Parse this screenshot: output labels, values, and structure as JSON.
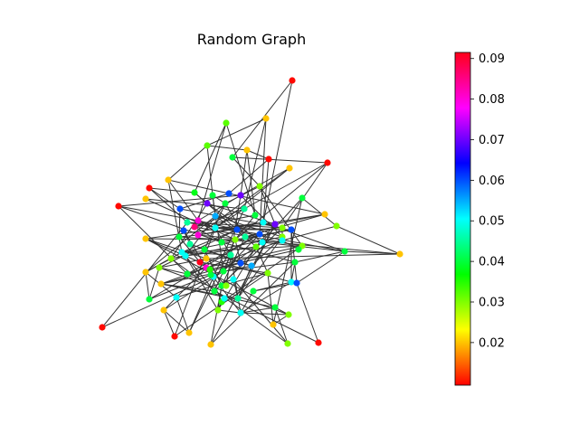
{
  "chart_data": {
    "type": "network",
    "title": "Random Graph",
    "colorbar": {
      "colormap": "hsv",
      "vmin": 0.0095,
      "vmax": 0.0915,
      "ticks": [
        {
          "value": 0.02,
          "label": "0.02"
        },
        {
          "value": 0.03,
          "label": "0.03"
        },
        {
          "value": 0.04,
          "label": "0.04"
        },
        {
          "value": 0.05,
          "label": "0.05"
        },
        {
          "value": 0.06,
          "label": "0.06"
        },
        {
          "value": 0.07,
          "label": "0.07"
        },
        {
          "value": 0.08,
          "label": "0.08"
        },
        {
          "value": 0.09,
          "label": "0.09"
        }
      ]
    },
    "node_values": [
      0.01,
      0.02,
      0.032,
      0.02,
      0.04,
      0.032,
      0.01,
      0.02,
      0.01,
      0.02,
      0.01,
      0.038,
      0.07,
      0.06,
      0.04,
      0.03,
      0.02,
      0.01,
      0.02,
      0.06,
      0.07,
      0.045,
      0.08,
      0.055,
      0.072,
      0.04,
      0.05,
      0.03,
      0.085,
      0.06,
      0.04,
      0.045,
      0.08,
      0.05,
      0.04,
      0.03,
      0.045,
      0.06,
      0.05,
      0.02,
      0.04,
      0.03,
      0.032,
      0.06,
      0.03,
      0.02,
      0.04,
      0.05,
      0.04,
      0.045,
      0.06,
      0.02,
      0.04,
      0.03,
      0.09,
      0.05,
      0.04,
      0.055,
      0.05,
      0.04,
      0.03,
      0.05,
      0.08,
      0.02,
      0.04,
      0.04,
      0.02,
      0.03,
      0.02,
      0.01,
      0.01,
      0.03,
      0.02,
      0.03,
      0.02,
      0.01,
      0.04,
      0.05,
      0.03,
      0.07,
      0.045,
      0.04,
      0.06,
      0.05,
      0.035,
      0.04,
      0.05,
      0.04,
      0.03,
      0.05,
      0.045,
      0.02,
      0.06,
      0.04,
      0.03,
      0.05,
      0.04,
      0.035,
      0.03,
      0.07
    ]
  }
}
